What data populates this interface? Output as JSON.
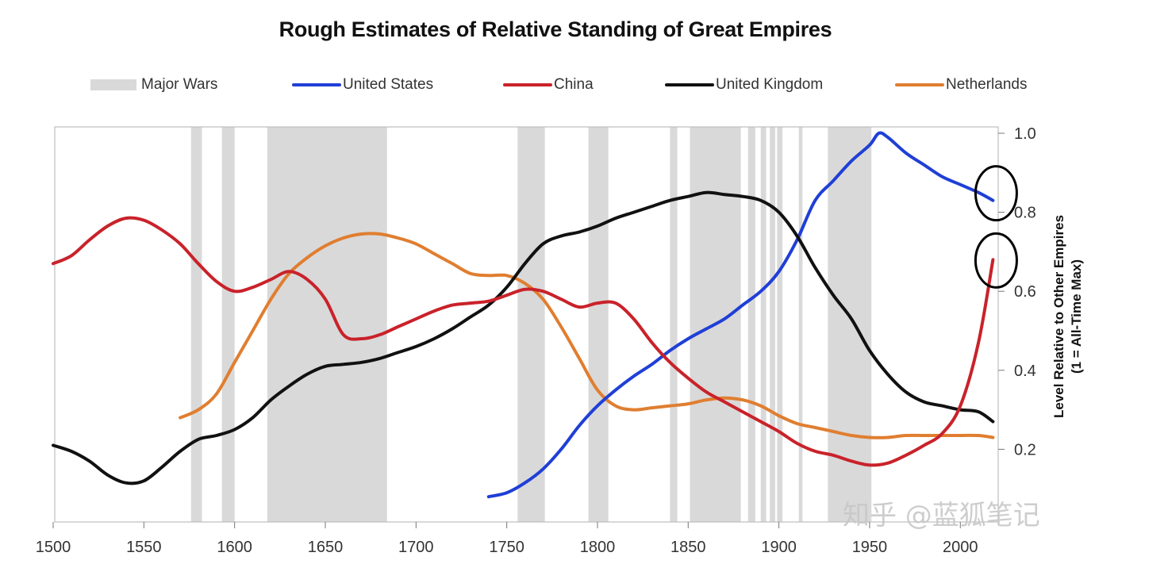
{
  "chart_data": {
    "type": "line",
    "title": "Rough Estimates of Relative Standing of Great Empires",
    "xlabel": "",
    "ylabel": "Level Relative to Other Empires",
    "ylabel_sub": "(1 = All-Time Max)",
    "xlim": [
      1500,
      2020
    ],
    "ylim": [
      0.0,
      1.0
    ],
    "y_axis_side": "right",
    "xticks": [
      1500,
      1550,
      1600,
      1650,
      1700,
      1750,
      1800,
      1850,
      1900,
      1950,
      2000
    ],
    "xtick_labels": [
      "1500",
      "1550",
      "1600",
      "1650",
      "1700",
      "1750",
      "1800",
      "1850",
      "1900",
      "1950",
      "2000"
    ],
    "yticks": [
      0.2,
      0.4,
      0.6,
      0.8,
      1.0
    ],
    "ytick_labels": [
      "0.2",
      "0.4",
      "0.6",
      "0.8",
      "1.0"
    ],
    "grid": false,
    "legend_position": "top",
    "major_wars": {
      "name": "Major Wars",
      "color": "#d9d9d9",
      "periods": [
        [
          1576,
          1582
        ],
        [
          1593,
          1600
        ],
        [
          1618,
          1684
        ],
        [
          1756,
          1771
        ],
        [
          1795,
          1806
        ],
        [
          1840,
          1844
        ],
        [
          1851,
          1879
        ],
        [
          1883,
          1887
        ],
        [
          1890,
          1893
        ],
        [
          1895,
          1898
        ],
        [
          1899,
          1902
        ],
        [
          1911,
          1913
        ],
        [
          1927,
          1951
        ]
      ]
    },
    "series": [
      {
        "name": "United States",
        "color": "#1f3fd6",
        "points": [
          [
            1740,
            0.08
          ],
          [
            1750,
            0.09
          ],
          [
            1760,
            0.115
          ],
          [
            1770,
            0.15
          ],
          [
            1780,
            0.2
          ],
          [
            1790,
            0.26
          ],
          [
            1800,
            0.31
          ],
          [
            1810,
            0.35
          ],
          [
            1820,
            0.385
          ],
          [
            1830,
            0.415
          ],
          [
            1840,
            0.45
          ],
          [
            1850,
            0.48
          ],
          [
            1860,
            0.505
          ],
          [
            1870,
            0.53
          ],
          [
            1880,
            0.565
          ],
          [
            1890,
            0.6
          ],
          [
            1900,
            0.65
          ],
          [
            1910,
            0.73
          ],
          [
            1920,
            0.83
          ],
          [
            1930,
            0.88
          ],
          [
            1940,
            0.93
          ],
          [
            1950,
            0.97
          ],
          [
            1955,
            1.0
          ],
          [
            1960,
            0.99
          ],
          [
            1970,
            0.95
          ],
          [
            1980,
            0.92
          ],
          [
            1990,
            0.89
          ],
          [
            2000,
            0.87
          ],
          [
            2010,
            0.85
          ],
          [
            2018,
            0.83
          ]
        ]
      },
      {
        "name": "China",
        "color": "#c9222a",
        "points": [
          [
            1500,
            0.67
          ],
          [
            1510,
            0.69
          ],
          [
            1520,
            0.73
          ],
          [
            1530,
            0.765
          ],
          [
            1540,
            0.785
          ],
          [
            1550,
            0.78
          ],
          [
            1560,
            0.755
          ],
          [
            1570,
            0.72
          ],
          [
            1580,
            0.67
          ],
          [
            1590,
            0.625
          ],
          [
            1600,
            0.6
          ],
          [
            1610,
            0.61
          ],
          [
            1620,
            0.63
          ],
          [
            1630,
            0.65
          ],
          [
            1640,
            0.63
          ],
          [
            1650,
            0.58
          ],
          [
            1660,
            0.49
          ],
          [
            1670,
            0.48
          ],
          [
            1680,
            0.49
          ],
          [
            1690,
            0.51
          ],
          [
            1700,
            0.53
          ],
          [
            1710,
            0.55
          ],
          [
            1720,
            0.565
          ],
          [
            1730,
            0.57
          ],
          [
            1740,
            0.575
          ],
          [
            1750,
            0.59
          ],
          [
            1760,
            0.605
          ],
          [
            1770,
            0.6
          ],
          [
            1780,
            0.58
          ],
          [
            1790,
            0.56
          ],
          [
            1800,
            0.57
          ],
          [
            1810,
            0.57
          ],
          [
            1820,
            0.53
          ],
          [
            1830,
            0.47
          ],
          [
            1840,
            0.42
          ],
          [
            1850,
            0.38
          ],
          [
            1860,
            0.345
          ],
          [
            1870,
            0.32
          ],
          [
            1880,
            0.295
          ],
          [
            1890,
            0.27
          ],
          [
            1900,
            0.245
          ],
          [
            1910,
            0.215
          ],
          [
            1920,
            0.195
          ],
          [
            1930,
            0.185
          ],
          [
            1940,
            0.17
          ],
          [
            1950,
            0.16
          ],
          [
            1960,
            0.165
          ],
          [
            1970,
            0.185
          ],
          [
            1980,
            0.21
          ],
          [
            1990,
            0.24
          ],
          [
            2000,
            0.31
          ],
          [
            2010,
            0.47
          ],
          [
            2018,
            0.68
          ]
        ]
      },
      {
        "name": "United Kingdom",
        "color": "#111111",
        "points": [
          [
            1500,
            0.21
          ],
          [
            1510,
            0.195
          ],
          [
            1520,
            0.17
          ],
          [
            1530,
            0.135
          ],
          [
            1540,
            0.115
          ],
          [
            1550,
            0.12
          ],
          [
            1560,
            0.155
          ],
          [
            1570,
            0.195
          ],
          [
            1580,
            0.225
          ],
          [
            1590,
            0.235
          ],
          [
            1600,
            0.25
          ],
          [
            1610,
            0.28
          ],
          [
            1620,
            0.325
          ],
          [
            1630,
            0.36
          ],
          [
            1640,
            0.39
          ],
          [
            1650,
            0.41
          ],
          [
            1660,
            0.415
          ],
          [
            1670,
            0.42
          ],
          [
            1680,
            0.43
          ],
          [
            1690,
            0.445
          ],
          [
            1700,
            0.46
          ],
          [
            1710,
            0.48
          ],
          [
            1720,
            0.505
          ],
          [
            1730,
            0.535
          ],
          [
            1740,
            0.565
          ],
          [
            1750,
            0.61
          ],
          [
            1760,
            0.67
          ],
          [
            1770,
            0.72
          ],
          [
            1780,
            0.74
          ],
          [
            1790,
            0.75
          ],
          [
            1800,
            0.765
          ],
          [
            1810,
            0.785
          ],
          [
            1820,
            0.8
          ],
          [
            1830,
            0.815
          ],
          [
            1840,
            0.83
          ],
          [
            1850,
            0.84
          ],
          [
            1860,
            0.85
          ],
          [
            1870,
            0.845
          ],
          [
            1880,
            0.84
          ],
          [
            1890,
            0.83
          ],
          [
            1900,
            0.8
          ],
          [
            1910,
            0.74
          ],
          [
            1920,
            0.66
          ],
          [
            1930,
            0.59
          ],
          [
            1940,
            0.53
          ],
          [
            1950,
            0.45
          ],
          [
            1960,
            0.39
          ],
          [
            1970,
            0.345
          ],
          [
            1980,
            0.32
          ],
          [
            1990,
            0.31
          ],
          [
            2000,
            0.3
          ],
          [
            2010,
            0.295
          ],
          [
            2018,
            0.27
          ]
        ]
      },
      {
        "name": "Netherlands",
        "color": "#e07e30",
        "points": [
          [
            1570,
            0.28
          ],
          [
            1580,
            0.3
          ],
          [
            1590,
            0.34
          ],
          [
            1600,
            0.42
          ],
          [
            1610,
            0.5
          ],
          [
            1620,
            0.58
          ],
          [
            1630,
            0.645
          ],
          [
            1640,
            0.685
          ],
          [
            1650,
            0.715
          ],
          [
            1660,
            0.735
          ],
          [
            1670,
            0.745
          ],
          [
            1680,
            0.745
          ],
          [
            1690,
            0.735
          ],
          [
            1700,
            0.72
          ],
          [
            1710,
            0.695
          ],
          [
            1720,
            0.67
          ],
          [
            1730,
            0.645
          ],
          [
            1740,
            0.64
          ],
          [
            1750,
            0.64
          ],
          [
            1760,
            0.62
          ],
          [
            1770,
            0.58
          ],
          [
            1780,
            0.51
          ],
          [
            1790,
            0.43
          ],
          [
            1800,
            0.35
          ],
          [
            1810,
            0.31
          ],
          [
            1820,
            0.3
          ],
          [
            1830,
            0.305
          ],
          [
            1840,
            0.31
          ],
          [
            1850,
            0.315
          ],
          [
            1860,
            0.325
          ],
          [
            1870,
            0.33
          ],
          [
            1880,
            0.325
          ],
          [
            1890,
            0.31
          ],
          [
            1900,
            0.285
          ],
          [
            1910,
            0.265
          ],
          [
            1920,
            0.255
          ],
          [
            1930,
            0.245
          ],
          [
            1940,
            0.235
          ],
          [
            1950,
            0.23
          ],
          [
            1960,
            0.23
          ],
          [
            1970,
            0.235
          ],
          [
            1980,
            0.235
          ],
          [
            1990,
            0.235
          ],
          [
            2000,
            0.235
          ],
          [
            2010,
            0.235
          ],
          [
            2018,
            0.23
          ]
        ]
      }
    ],
    "annotations": [
      {
        "type": "ellipse",
        "target": "United States",
        "year": 2018,
        "value": 0.84
      },
      {
        "type": "ellipse",
        "target": "China",
        "year": 2018,
        "value": 0.67
      }
    ]
  },
  "legend": [
    {
      "label": "Major Wars",
      "kind": "bar",
      "color": "#d9d9d9"
    },
    {
      "label": "United States",
      "kind": "line",
      "color": "#1f3fd6"
    },
    {
      "label": "China",
      "kind": "line",
      "color": "#c9222a"
    },
    {
      "label": "United Kingdom",
      "kind": "line",
      "color": "#111111"
    },
    {
      "label": "Netherlands",
      "kind": "line",
      "color": "#e07e30"
    }
  ],
  "watermark": "知乎 @蓝狐笔记"
}
